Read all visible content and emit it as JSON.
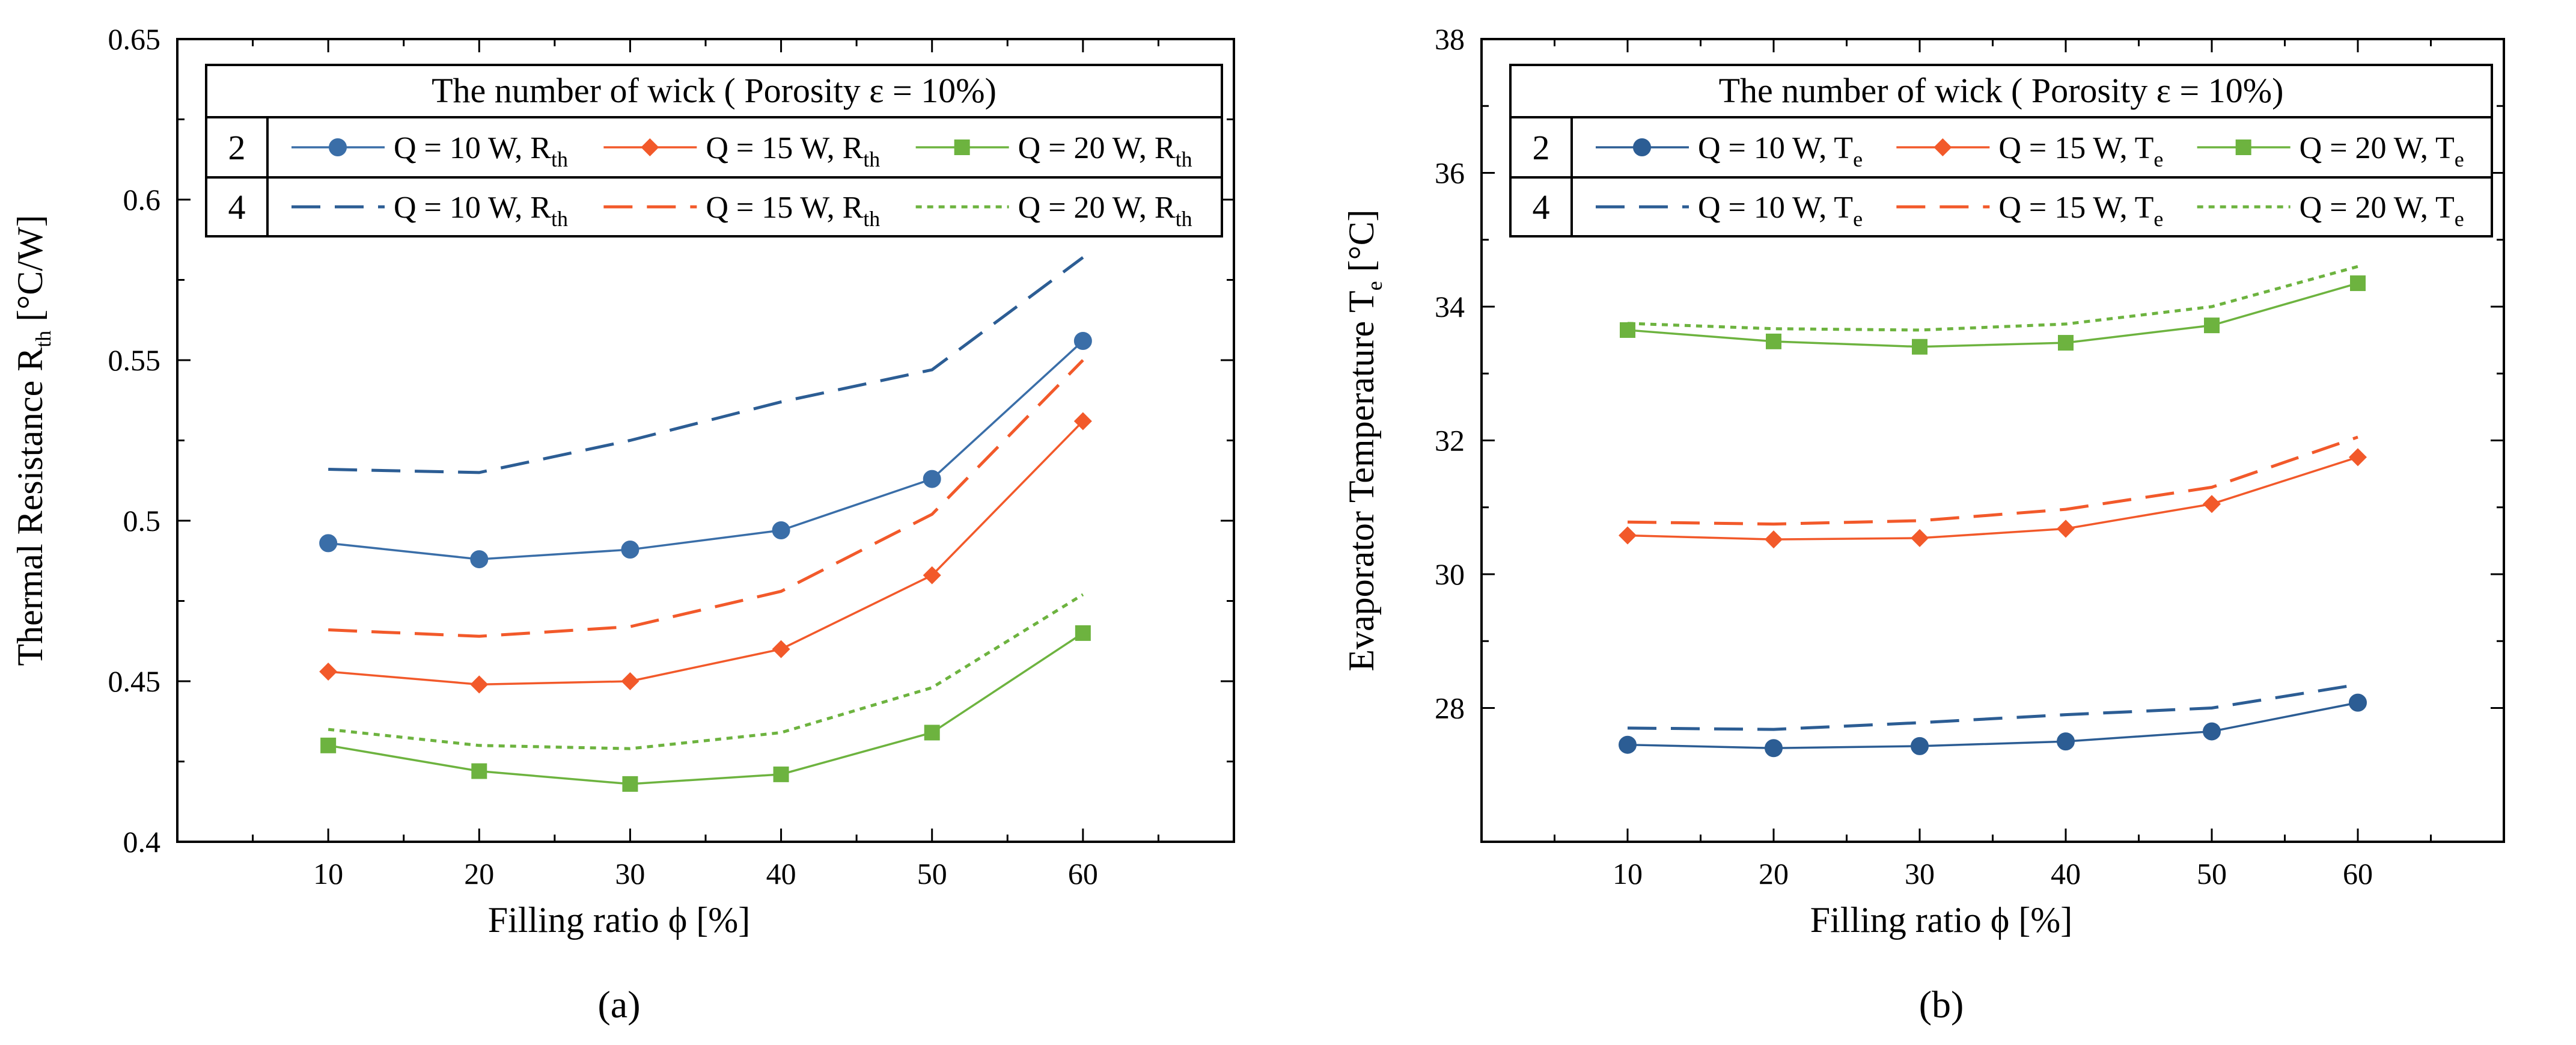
{
  "chart_data": [
    {
      "type": "line",
      "id": "a",
      "panel_label": "(a)",
      "xlabel": "Filling ratio ϕ [%]",
      "ylabel_main": "Thermal Resistance R",
      "ylabel_sub": "th",
      "ylabel_unit": " [°C/W]",
      "xlim": [
        0,
        70
      ],
      "ylim": [
        0.4,
        0.65
      ],
      "xticks": [
        10,
        20,
        30,
        40,
        50,
        60
      ],
      "xtick_labels": [
        "10",
        "20",
        "30",
        "40",
        "50",
        "60"
      ],
      "yticks": [
        0.4,
        0.45,
        0.5,
        0.55,
        0.6,
        0.65
      ],
      "ytick_labels": [
        "0.4",
        "0.45",
        "0.5",
        "0.55",
        "0.6",
        "0.65"
      ],
      "legend": {
        "position": "top",
        "title": "The number of wick ( Porosity ε = 10%)",
        "row_labels": [
          "2",
          "4"
        ],
        "entries": [
          [
            "Q = 10 W, R",
            "th"
          ],
          [
            "Q = 15 W, R",
            "th"
          ],
          [
            "Q = 20 W, R",
            "th"
          ]
        ]
      },
      "x": [
        10,
        20,
        30,
        40,
        50,
        60
      ],
      "series": [
        {
          "name": "2 wicks, Q = 10 W",
          "wick": "2",
          "heat": "10",
          "color": "#3a6ea8",
          "style": "solid",
          "marker": "circle",
          "values": [
            0.493,
            0.488,
            0.491,
            0.497,
            0.513,
            0.556
          ]
        },
        {
          "name": "2 wicks, Q = 15 W",
          "wick": "2",
          "heat": "15",
          "color": "#f2592a",
          "style": "solid",
          "marker": "diamond",
          "values": [
            0.453,
            0.449,
            0.45,
            0.46,
            0.483,
            0.531
          ]
        },
        {
          "name": "2 wicks, Q = 20 W",
          "wick": "2",
          "heat": "20",
          "color": "#6db33f",
          "style": "solid",
          "marker": "square",
          "values": [
            0.43,
            0.422,
            0.418,
            0.421,
            0.434,
            0.465
          ]
        },
        {
          "name": "4 wicks, Q = 10 W",
          "wick": "4",
          "heat": "10",
          "color": "#2c5d94",
          "style": "dashed",
          "marker": "none",
          "values": [
            0.516,
            0.515,
            0.525,
            0.537,
            0.547,
            0.582
          ]
        },
        {
          "name": "4 wicks, Q = 15 W",
          "wick": "4",
          "heat": "15",
          "color": "#f2592a",
          "style": "dashed",
          "marker": "none",
          "values": [
            0.466,
            0.464,
            0.467,
            0.478,
            0.502,
            0.55
          ]
        },
        {
          "name": "4 wicks, Q = 20 W",
          "wick": "4",
          "heat": "20",
          "color": "#6db33f",
          "style": "dotted",
          "marker": "none",
          "values": [
            0.435,
            0.43,
            0.429,
            0.434,
            0.448,
            0.477
          ]
        }
      ]
    },
    {
      "type": "line",
      "id": "b",
      "panel_label": "(b)",
      "xlabel": "Filling ratio ϕ [%]",
      "ylabel_main": "Evaporator Temperature T",
      "ylabel_sub": "e",
      "ylabel_unit": " [°C]",
      "xlim": [
        0,
        70
      ],
      "ylim": [
        26,
        38
      ],
      "xticks": [
        10,
        20,
        30,
        40,
        50,
        60
      ],
      "xtick_labels": [
        "10",
        "20",
        "30",
        "40",
        "50",
        "60"
      ],
      "yticks": [
        28,
        30,
        32,
        34,
        36,
        38
      ],
      "ytick_labels": [
        "28",
        "30",
        "32",
        "34",
        "36",
        "38"
      ],
      "legend": {
        "position": "top",
        "title": "The number of wick ( Porosity ε = 10%)",
        "row_labels": [
          "2",
          "4"
        ],
        "entries": [
          [
            "Q = 10 W, T",
            "e"
          ],
          [
            "Q = 15 W, T",
            "e"
          ],
          [
            "Q = 20 W, T",
            "e"
          ]
        ]
      },
      "x": [
        10,
        20,
        30,
        40,
        50,
        60
      ],
      "series": [
        {
          "name": "2 wicks, Q = 10 W",
          "wick": "2",
          "heat": "10",
          "color": "#2c5d94",
          "style": "solid",
          "marker": "circle",
          "values": [
            27.45,
            27.4,
            27.43,
            27.5,
            27.65,
            28.08
          ]
        },
        {
          "name": "2 wicks, Q = 15 W",
          "wick": "2",
          "heat": "15",
          "color": "#f2592a",
          "style": "solid",
          "marker": "diamond",
          "values": [
            30.58,
            30.52,
            30.54,
            30.68,
            31.05,
            31.75
          ]
        },
        {
          "name": "2 wicks, Q = 20 W",
          "wick": "2",
          "heat": "20",
          "color": "#6db33f",
          "style": "solid",
          "marker": "square",
          "values": [
            33.65,
            33.48,
            33.4,
            33.46,
            33.72,
            34.35
          ]
        },
        {
          "name": "4 wicks, Q = 10 W",
          "wick": "4",
          "heat": "10",
          "color": "#2c5d94",
          "style": "dashed",
          "marker": "none",
          "values": [
            27.7,
            27.68,
            27.78,
            27.9,
            28.0,
            28.35
          ]
        },
        {
          "name": "4 wicks, Q = 15 W",
          "wick": "4",
          "heat": "15",
          "color": "#f2592a",
          "style": "dashed",
          "marker": "none",
          "values": [
            30.78,
            30.75,
            30.8,
            30.97,
            31.3,
            32.05
          ]
        },
        {
          "name": "4 wicks, Q = 20 W",
          "wick": "4",
          "heat": "20",
          "color": "#6db33f",
          "style": "dotted",
          "marker": "none",
          "values": [
            33.75,
            33.67,
            33.65,
            33.74,
            34.0,
            34.6
          ]
        }
      ]
    }
  ]
}
